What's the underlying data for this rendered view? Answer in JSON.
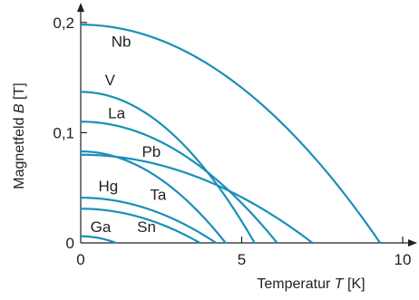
{
  "chart_data": {
    "type": "line",
    "xlabel_prefix": "Temperatur ",
    "xlabel_var": "T",
    "xlabel_unit": " [K]",
    "ylabel_prefix": "Magnetfeld ",
    "ylabel_var": "B",
    "ylabel_unit": " [T]",
    "xlim": [
      0,
      10.5
    ],
    "ylim": [
      0,
      0.21
    ],
    "xticks": [
      {
        "value": 0,
        "label": "0"
      },
      {
        "value": 5,
        "label": "5"
      },
      {
        "value": 10,
        "label": "10"
      }
    ],
    "yticks": [
      {
        "value": 0,
        "label": "0"
      },
      {
        "value": 0.1,
        "label": "0,1"
      },
      {
        "value": 0.2,
        "label": "0,2"
      }
    ],
    "grid": false,
    "legend": "none (series labelled directly on curves)",
    "line_color": "#1a8fb8",
    "series": [
      {
        "name": "Nb",
        "Bc0": 0.198,
        "Tc": 9.3,
        "label_at": [
          0.95,
          0.178
        ]
      },
      {
        "name": "V",
        "Bc0": 0.137,
        "Tc": 5.4,
        "label_at": [
          0.75,
          0.143
        ]
      },
      {
        "name": "La",
        "Bc0": 0.11,
        "Tc": 6.1,
        "label_at": [
          0.85,
          0.113
        ]
      },
      {
        "name": "Pb",
        "Bc0": 0.08,
        "Tc": 7.2,
        "label_at": [
          1.9,
          0.078
        ]
      },
      {
        "name": "Ta",
        "Bc0": 0.083,
        "Tc": 4.5,
        "label_at": [
          2.15,
          0.039
        ]
      },
      {
        "name": "Hg",
        "Bc0": 0.041,
        "Tc": 4.2,
        "label_at": [
          0.55,
          0.047
        ]
      },
      {
        "name": "Sn",
        "Bc0": 0.031,
        "Tc": 3.7,
        "label_at": [
          1.75,
          0.01
        ]
      },
      {
        "name": "Ga",
        "Bc0": 0.006,
        "Tc": 1.1,
        "label_at": [
          0.3,
          0.01
        ]
      }
    ]
  }
}
